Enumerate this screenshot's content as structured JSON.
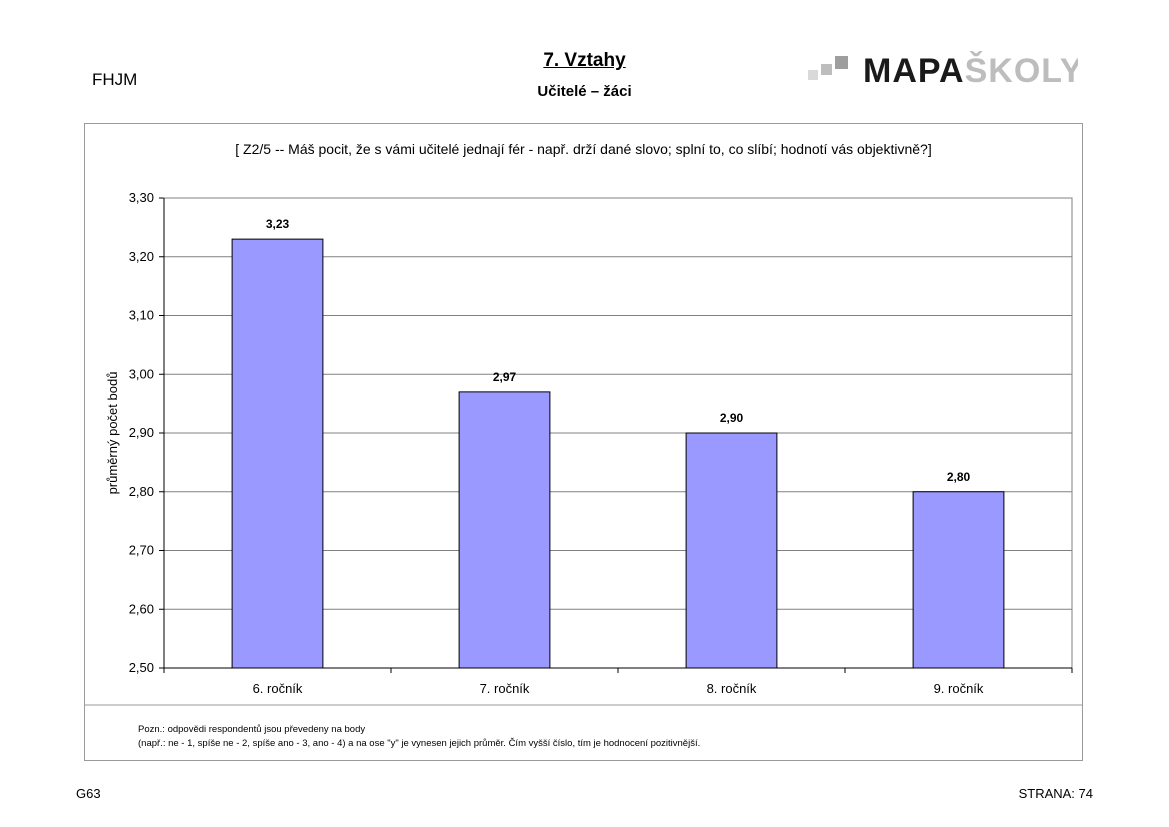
{
  "header": {
    "school_code": "FHJM",
    "title": "7. Vztahy",
    "subtitle": "Učitelé – žáci",
    "logo_text": "MAPAŠKOLY"
  },
  "question": "[ Z2/5 --  Máš pocit, že s vámi učitelé jednají fér - např. drží dané slovo; splní to, co slíbí; hodnotí vás objektivně?]",
  "note": {
    "line1": "Pozn.: odpovědi respondentů jsou převedeny na body",
    "line2": "(např.: ne - 1, spíše ne - 2, spíše ano - 3, ano - 4) a na ose \"y\" je vynesen jejich průměr. Čím vyšší číslo, tím je hodnocení pozitivnější."
  },
  "footer": {
    "code": "G63",
    "page": "STRANA: 74"
  },
  "colors": {
    "bar_fill": "#9999ff",
    "bar_stroke": "#000000",
    "grid": "#808080",
    "logo_dark": "#1a1a1a",
    "logo_light": "#bdbdbd"
  },
  "chart_data": {
    "type": "bar",
    "title": "",
    "xlabel": "",
    "ylabel": "průměrný počet bodů",
    "categories": [
      "6. ročník",
      "7. ročník",
      "8. ročník",
      "9. ročník"
    ],
    "values": [
      3.23,
      2.97,
      2.9,
      2.8
    ],
    "value_labels": [
      "3,23",
      "2,97",
      "2,90",
      "2,80"
    ],
    "ylim": [
      2.5,
      3.3
    ],
    "yticks": [
      2.5,
      2.6,
      2.7,
      2.8,
      2.9,
      3.0,
      3.1,
      3.2,
      3.3
    ],
    "ytick_labels": [
      "2,50",
      "2,60",
      "2,70",
      "2,80",
      "2,90",
      "3,00",
      "3,10",
      "3,20",
      "3,30"
    ],
    "grid": true,
    "legend": "none"
  }
}
